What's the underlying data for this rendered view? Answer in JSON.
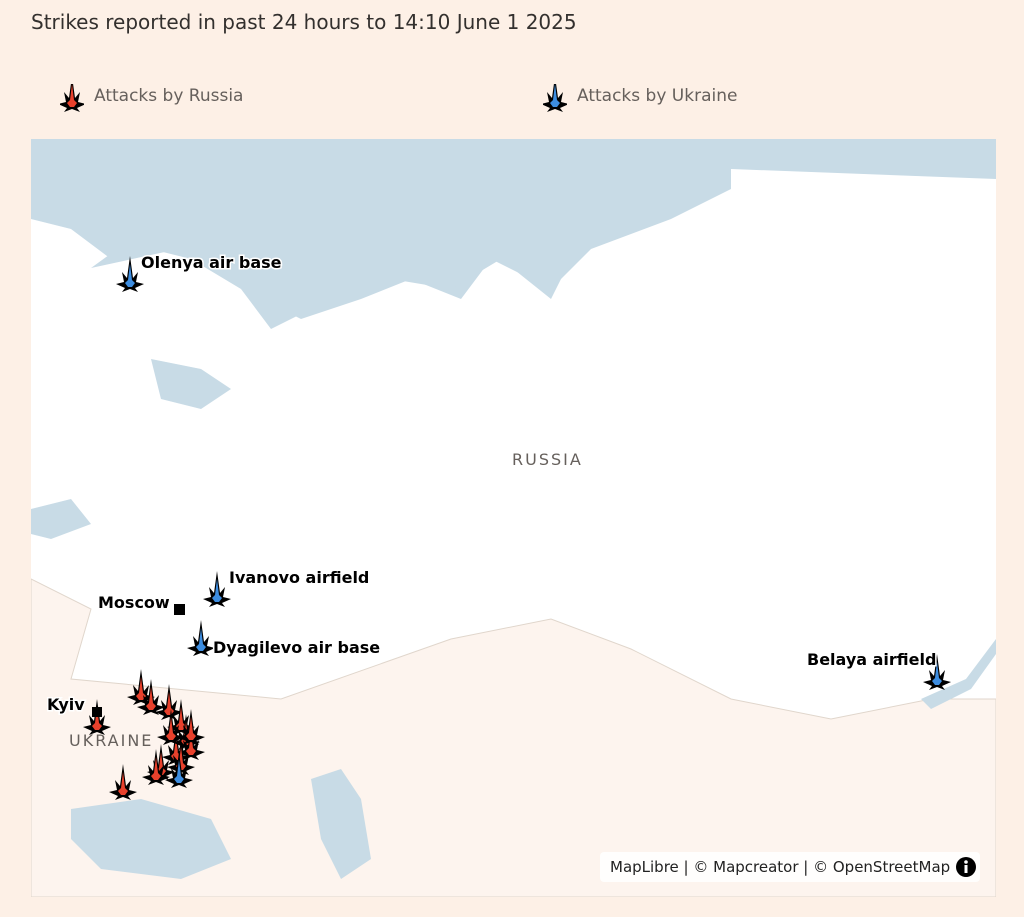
{
  "header": {
    "title": "Strikes reported in past 24 hours to 14:10 June 1 2025"
  },
  "legend": {
    "items": [
      {
        "label": "Attacks by Russia"
      },
      {
        "label": "Attacks by Ukraine"
      }
    ]
  },
  "map": {
    "regions": [
      {
        "label": "RUSSIA"
      },
      {
        "label": "UKRAINE"
      }
    ],
    "places": [
      {
        "label": "Olenya air base"
      },
      {
        "label": "Ivanovo airfield"
      },
      {
        "label": "Moscow"
      },
      {
        "label": "Dyagilevo air base"
      },
      {
        "label": "Belaya airfield"
      },
      {
        "label": "Kyiv"
      }
    ],
    "attribution": "MapLibre | © Mapcreator | © OpenStreetMap"
  }
}
